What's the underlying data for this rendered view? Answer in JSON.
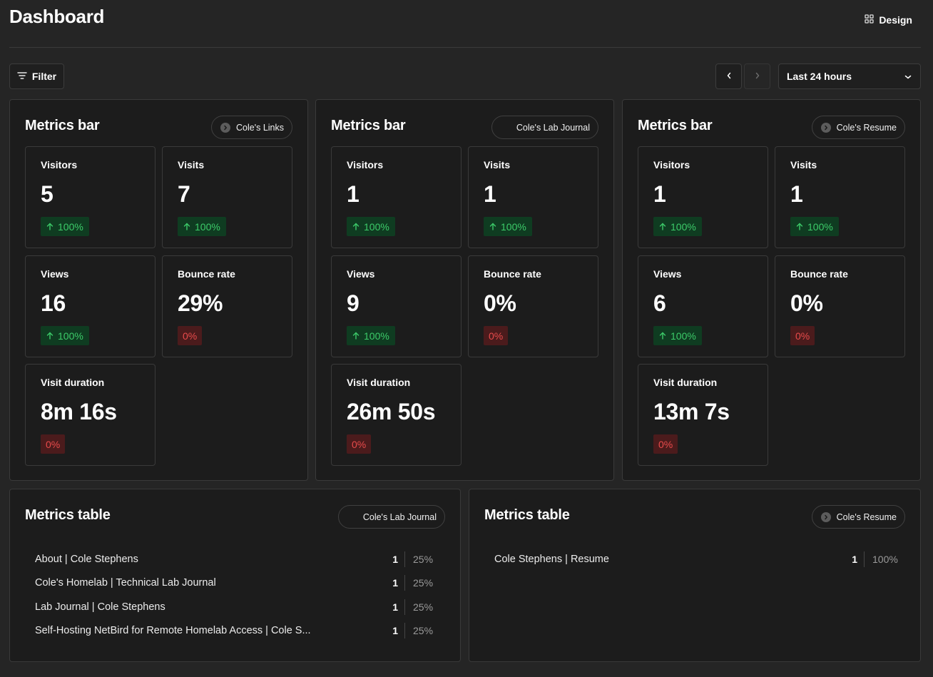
{
  "header": {
    "title": "Dashboard",
    "design_label": "Design"
  },
  "toolbar": {
    "filter_label": "Filter",
    "date_range": "Last 24 hours"
  },
  "metrics_bars": [
    {
      "title": "Metrics bar",
      "site": "Cole's Links",
      "site_icon": "chevron-right-icon",
      "visitors": {
        "label": "Visitors",
        "value": "5",
        "change": "100%"
      },
      "visits": {
        "label": "Visits",
        "value": "7",
        "change": "100%"
      },
      "views": {
        "label": "Views",
        "value": "16",
        "change": "100%"
      },
      "bounce": {
        "label": "Bounce rate",
        "value": "29%",
        "change": "0%"
      },
      "duration": {
        "label": "Visit duration",
        "value": "8m 16s",
        "change": "0%"
      }
    },
    {
      "title": "Metrics bar",
      "site": "Cole's Lab Journal",
      "site_icon": "",
      "visitors": {
        "label": "Visitors",
        "value": "1",
        "change": "100%"
      },
      "visits": {
        "label": "Visits",
        "value": "1",
        "change": "100%"
      },
      "views": {
        "label": "Views",
        "value": "9",
        "change": "100%"
      },
      "bounce": {
        "label": "Bounce rate",
        "value": "0%",
        "change": "0%"
      },
      "duration": {
        "label": "Visit duration",
        "value": "26m 50s",
        "change": "0%"
      }
    },
    {
      "title": "Metrics bar",
      "site": "Cole's Resume",
      "site_icon": "chevron-right-icon",
      "visitors": {
        "label": "Visitors",
        "value": "1",
        "change": "100%"
      },
      "visits": {
        "label": "Visits",
        "value": "1",
        "change": "100%"
      },
      "views": {
        "label": "Views",
        "value": "6",
        "change": "100%"
      },
      "bounce": {
        "label": "Bounce rate",
        "value": "0%",
        "change": "0%"
      },
      "duration": {
        "label": "Visit duration",
        "value": "13m 7s",
        "change": "0%"
      }
    }
  ],
  "metrics_tables": [
    {
      "title": "Metrics table",
      "site": "Cole's Lab Journal",
      "rows": [
        {
          "label": "About | Cole Stephens",
          "count": "1",
          "pct": "25%"
        },
        {
          "label": "Cole's Homelab | Technical Lab Journal",
          "count": "1",
          "pct": "25%"
        },
        {
          "label": "Lab Journal | Cole Stephens",
          "count": "1",
          "pct": "25%"
        },
        {
          "label": "Self-Hosting NetBird for Remote Homelab Access | Cole S...",
          "count": "1",
          "pct": "25%"
        }
      ]
    },
    {
      "title": "Metrics table",
      "site": "Cole's Resume",
      "rows": [
        {
          "label": "Cole Stephens | Resume",
          "count": "1",
          "pct": "100%"
        }
      ]
    }
  ],
  "colors": {
    "background": "#252525",
    "panel": "#1c1c1c",
    "positive": "#3ccb69",
    "positive_bg": "#0f3c21",
    "negative": "#e84b4b",
    "negative_bg": "#4b1b1c"
  }
}
